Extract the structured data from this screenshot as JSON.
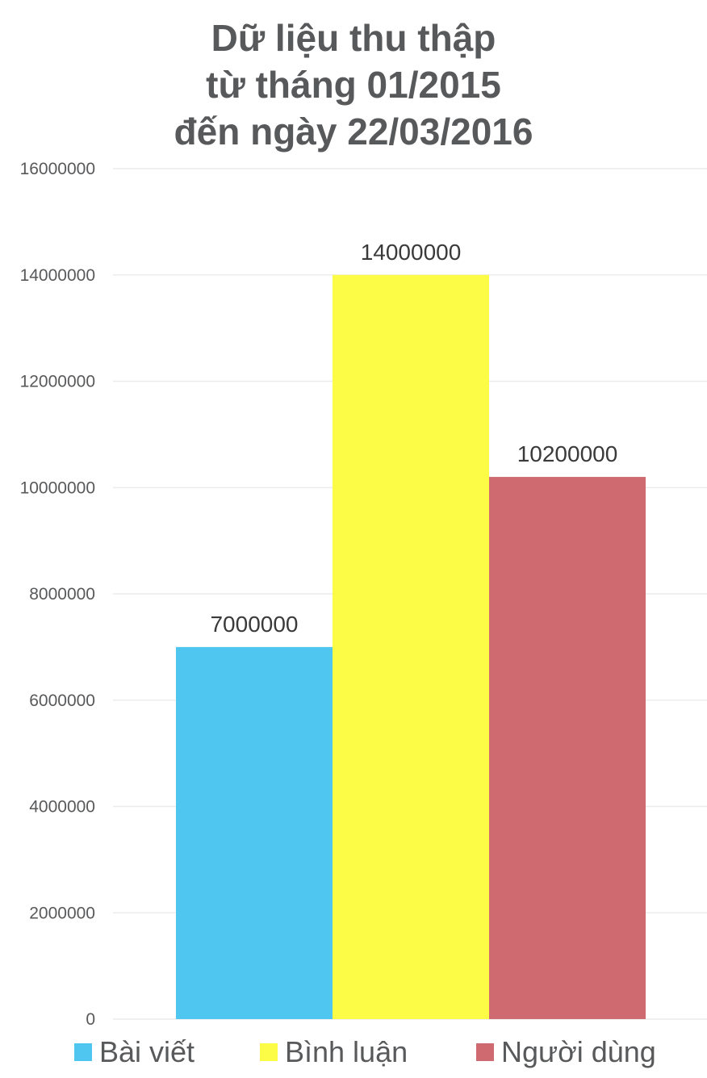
{
  "chart_data": {
    "type": "bar",
    "title_lines": [
      "Dữ liệu thu thập",
      "từ tháng 01/2015",
      "đến ngày 22/03/2016"
    ],
    "categories": [
      "Bài viết",
      "Bình luận",
      "Người dùng"
    ],
    "values": [
      7000000,
      14000000,
      10200000
    ],
    "colors": [
      "#4fc6ef",
      "#fcfc47",
      "#cf6a71"
    ],
    "data_labels": [
      "7000000",
      "14000000",
      "10200000"
    ],
    "ylim": [
      0,
      16000000
    ],
    "yticks": [
      0,
      2000000,
      4000000,
      6000000,
      8000000,
      10000000,
      12000000,
      14000000,
      16000000
    ],
    "ytick_labels": [
      "0",
      "2000000",
      "4000000",
      "6000000",
      "8000000",
      "10000000",
      "12000000",
      "14000000",
      "16000000"
    ],
    "grid": true,
    "legend": "bottom"
  }
}
